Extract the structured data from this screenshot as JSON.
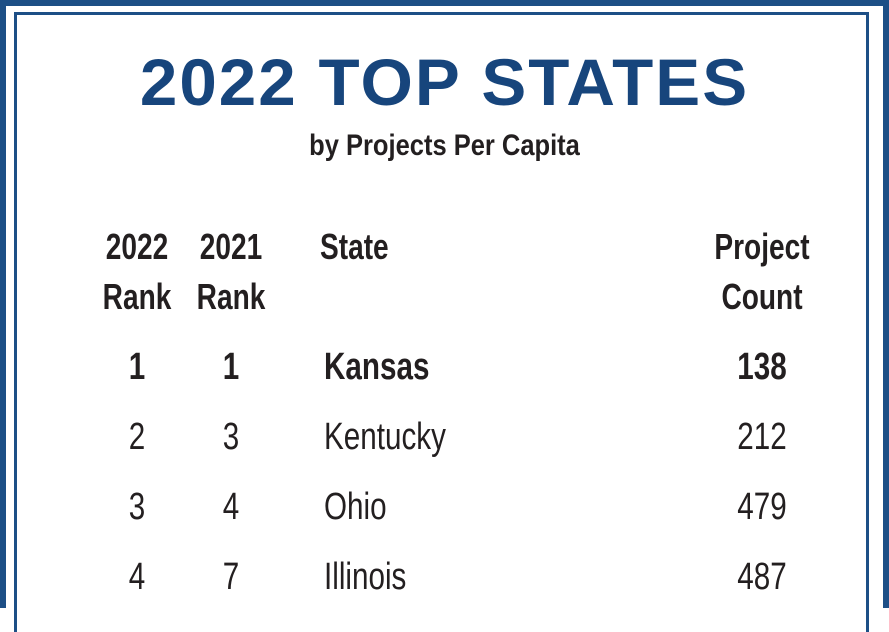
{
  "title": "2022 TOP STATES",
  "subtitle": "by Projects Per Capita",
  "colors": {
    "title": "#17457c",
    "frame": "#1d4f86",
    "text": "#231f20"
  },
  "chart_data": {
    "type": "table",
    "columns": [
      {
        "line1": "2022",
        "line2": "Rank"
      },
      {
        "line1": "2021",
        "line2": "Rank"
      },
      {
        "line1": "State",
        "line2": ""
      },
      {
        "line1": "Project",
        "line2": "Count"
      }
    ],
    "rows": [
      {
        "rank_2022": "1",
        "rank_2021": "1",
        "state": "Kansas",
        "project_count": "138"
      },
      {
        "rank_2022": "2",
        "rank_2021": "3",
        "state": "Kentucky",
        "project_count": "212"
      },
      {
        "rank_2022": "3",
        "rank_2021": "4",
        "state": "Ohio",
        "project_count": "479"
      },
      {
        "rank_2022": "4",
        "rank_2021": "7",
        "state": "Illinois",
        "project_count": "487"
      }
    ]
  }
}
